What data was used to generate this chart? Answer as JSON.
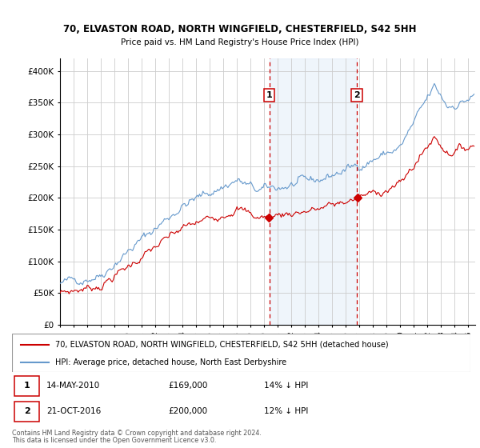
{
  "title": "70, ELVASTON ROAD, NORTH WINGFIELD, CHESTERFIELD, S42 5HH",
  "subtitle": "Price paid vs. HM Land Registry's House Price Index (HPI)",
  "ylabel_ticks": [
    "£0",
    "£50K",
    "£100K",
    "£150K",
    "£200K",
    "£250K",
    "£300K",
    "£350K",
    "£400K"
  ],
  "ytick_values": [
    0,
    50000,
    100000,
    150000,
    200000,
    250000,
    300000,
    350000,
    400000
  ],
  "ylim": [
    0,
    420000
  ],
  "xlim_start": 1995.0,
  "xlim_end": 2025.5,
  "sale1": {
    "date_str": "14-MAY-2010",
    "year": 2010.37,
    "price": 169000,
    "label": "1"
  },
  "sale2": {
    "date_str": "21-OCT-2016",
    "year": 2016.81,
    "price": 200000,
    "label": "2"
  },
  "legend_property": "70, ELVASTON ROAD, NORTH WINGFIELD, CHESTERFIELD, S42 5HH (detached house)",
  "legend_hpi": "HPI: Average price, detached house, North East Derbyshire",
  "footnote1": "Contains HM Land Registry data © Crown copyright and database right 2024.",
  "footnote2": "This data is licensed under the Open Government Licence v3.0.",
  "red_color": "#cc0000",
  "blue_color": "#6699cc",
  "shaded_color": "#ddeeff",
  "grid_color": "#cccccc",
  "bg_color": "#ffffff"
}
